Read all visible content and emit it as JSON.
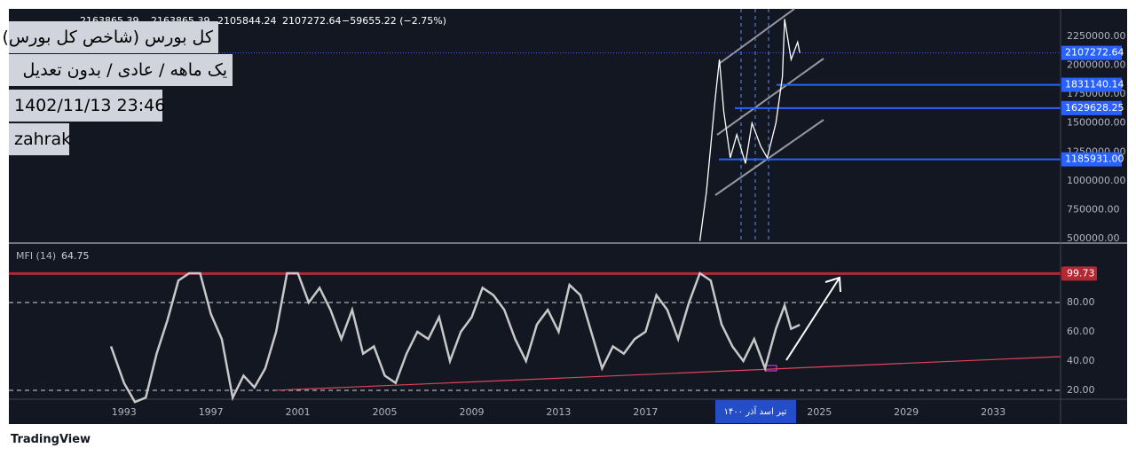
{
  "header": {
    "ohlc": [
      "2163865.39",
      "2163865.39",
      "2105844.24",
      "2107272.64",
      "−59655.22 (−2.75%)"
    ]
  },
  "overlay": [
    "کل بورس (شاخص کل بورس)",
    "یک ماهه / عادی / بدون تعدیل",
    "1402/11/13 23:46",
    "zahrak"
  ],
  "xaxis": {
    "xlim": [
      1987.7,
      2036.1
    ],
    "xticks": [
      1993,
      1997,
      2001,
      2005,
      2009,
      2013,
      2017,
      2025,
      2029,
      2033
    ],
    "highlight": "۱۴۰۰   تیر   اسد   آذر"
  },
  "chart_data": [
    {
      "type": "line",
      "name": "price",
      "color": "#ffffff",
      "x": [
        2019.5,
        2019.8,
        2020.0,
        2020.2,
        2020.4,
        2020.6,
        2020.9,
        2021.2,
        2021.6,
        2021.9,
        2022.3,
        2022.6,
        2023.0,
        2023.3,
        2023.4,
        2023.7,
        2024.0,
        2024.1
      ],
      "values": [
        480000,
        900000,
        1300000,
        1700000,
        2050000,
        1600000,
        1200000,
        1400000,
        1150000,
        1500000,
        1300000,
        1200000,
        1500000,
        1900000,
        2400000,
        2050000,
        2200000,
        2107272.64
      ],
      "ylim": [
        469300,
        2488000
      ],
      "yticks": [
        {
          "value": 500000,
          "label": "500000.00"
        },
        {
          "value": 750000,
          "label": "750000.00"
        },
        {
          "value": 1000000,
          "label": "1000000.00"
        },
        {
          "value": 1250000,
          "label": "1250000.00"
        },
        {
          "value": 1500000,
          "label": "1500000.00"
        },
        {
          "value": 1750000,
          "label": "1750000.00"
        },
        {
          "value": 2000000,
          "label": "2000000.00"
        },
        {
          "value": 2250000,
          "label": "2250000.00"
        }
      ],
      "last": 2107272.64,
      "levels": [
        1831140.14,
        1629628.25,
        1185931.0
      ],
      "level_labels": [
        "1831140.14",
        "1629628.25",
        "1185931.00"
      ]
    },
    {
      "type": "line",
      "name": "MFI (14)",
      "color": "#c8c8c8",
      "legend_value": "64.75",
      "x": [
        1992.4,
        1993.0,
        1993.5,
        1994.0,
        1994.5,
        1995.0,
        1995.5,
        1996.0,
        1996.5,
        1997.0,
        1997.5,
        1998.0,
        1998.5,
        1999.0,
        1999.5,
        2000.0,
        2000.5,
        2001.0,
        2001.5,
        2002.0,
        2002.5,
        2003.0,
        2003.5,
        2004.0,
        2004.5,
        2005.0,
        2005.5,
        2006.0,
        2006.5,
        2007.0,
        2007.5,
        2008.0,
        2008.5,
        2009.0,
        2009.5,
        2010.0,
        2010.5,
        2011.0,
        2011.5,
        2012.0,
        2012.5,
        2013.0,
        2013.5,
        2014.0,
        2014.5,
        2015.0,
        2015.5,
        2016.0,
        2016.5,
        2017.0,
        2017.5,
        2018.0,
        2018.5,
        2019.0,
        2019.5,
        2020.0,
        2020.5,
        2021.0,
        2021.5,
        2022.0,
        2022.5,
        2023.0,
        2023.4,
        2023.7,
        2024.1
      ],
      "values": [
        50,
        25,
        12,
        15,
        45,
        68,
        95,
        100,
        100,
        72,
        55,
        15,
        30,
        22,
        35,
        60,
        100,
        100,
        80,
        90,
        75,
        55,
        75,
        45,
        50,
        30,
        25,
        45,
        60,
        55,
        70,
        40,
        60,
        70,
        90,
        85,
        75,
        55,
        40,
        65,
        75,
        60,
        92,
        85,
        60,
        35,
        50,
        45,
        55,
        60,
        85,
        75,
        55,
        80,
        100,
        95,
        65,
        50,
        40,
        55,
        35,
        62,
        78,
        62,
        64.75
      ],
      "ylim": [
        13.9,
        120
      ],
      "yticks": [
        {
          "value": 20,
          "label": "20.00"
        },
        {
          "value": 40,
          "label": "40.00"
        },
        {
          "value": 60,
          "label": "60.00"
        },
        {
          "value": 80,
          "label": "80.00"
        }
      ],
      "bands": [
        20,
        80
      ],
      "hline": 99.73,
      "trendline": {
        "x": [
          2000.0,
          2036.1
        ],
        "values": [
          20,
          43
        ]
      }
    }
  ],
  "footer": "TradingView"
}
